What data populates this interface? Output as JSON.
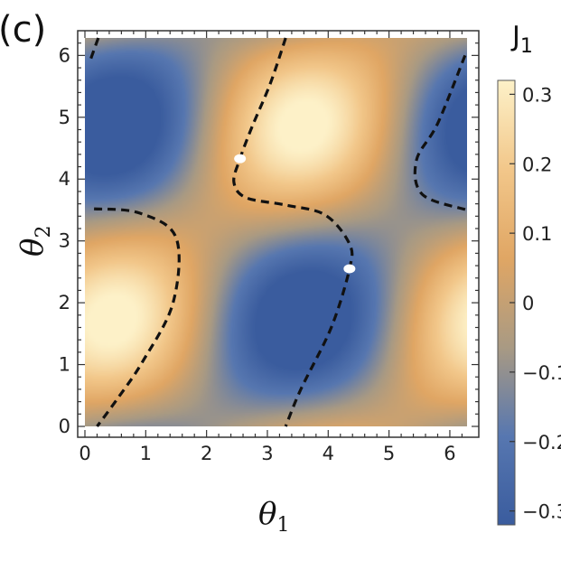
{
  "panel_label": "(c)",
  "colorbar": {
    "title": "J",
    "title_sub": "1",
    "ticks": [
      {
        "value": 0.3,
        "label": "0.3"
      },
      {
        "value": 0.2,
        "label": "0.2"
      },
      {
        "value": 0.1,
        "label": "0.1"
      },
      {
        "value": 0.0,
        "label": "0"
      },
      {
        "value": -0.1,
        "label": "−0.1"
      },
      {
        "value": -0.2,
        "label": "−0.2"
      },
      {
        "value": -0.3,
        "label": "−0.3"
      }
    ],
    "range": [
      -0.32,
      0.32
    ],
    "colors": [
      "#3a5c9e",
      "#5777b0",
      "#a99a83",
      "#e0a664",
      "#f2c78a",
      "#fdf1c8"
    ]
  },
  "chart_data": {
    "type": "heatmap",
    "title": "",
    "xlabel": "θ",
    "xlabel_sub": "1",
    "ylabel": "θ",
    "ylabel_sub": "2",
    "xlim": [
      0,
      6.283
    ],
    "ylim": [
      0,
      6.283
    ],
    "xticks": [
      0,
      1,
      2,
      3,
      4,
      5,
      6
    ],
    "yticks": [
      0,
      1,
      2,
      3,
      4,
      5,
      6
    ],
    "value_range": [
      -0.32,
      0.32
    ],
    "special_points": [
      {
        "x": 2.55,
        "y": 4.33
      },
      {
        "x": 4.35,
        "y": 2.55
      }
    ],
    "zero_contours": [
      [
        [
          0.22,
          6.283
        ],
        [
          0.08,
          5.9
        ]
      ],
      [
        [
          3.3,
          6.283
        ],
        [
          3.05,
          5.55
        ],
        [
          2.75,
          4.85
        ],
        [
          2.55,
          4.33
        ],
        [
          2.45,
          3.95
        ],
        [
          2.65,
          3.7
        ],
        [
          3.3,
          3.58
        ],
        [
          3.95,
          3.42
        ],
        [
          4.35,
          2.95
        ],
        [
          4.35,
          2.55
        ],
        [
          4.05,
          1.6
        ],
        [
          3.55,
          0.6
        ],
        [
          3.3,
          0
        ]
      ],
      [
        [
          6.25,
          6.0
        ],
        [
          5.8,
          4.9
        ],
        [
          5.45,
          4.3
        ],
        [
          5.55,
          3.75
        ],
        [
          6.283,
          3.5
        ]
      ],
      [
        [
          0.15,
          3.52
        ],
        [
          0.9,
          3.45
        ],
        [
          1.5,
          3.05
        ],
        [
          1.45,
          2.0
        ],
        [
          0.95,
          1.05
        ],
        [
          0.5,
          0.4
        ],
        [
          0.2,
          0
        ]
      ]
    ]
  }
}
